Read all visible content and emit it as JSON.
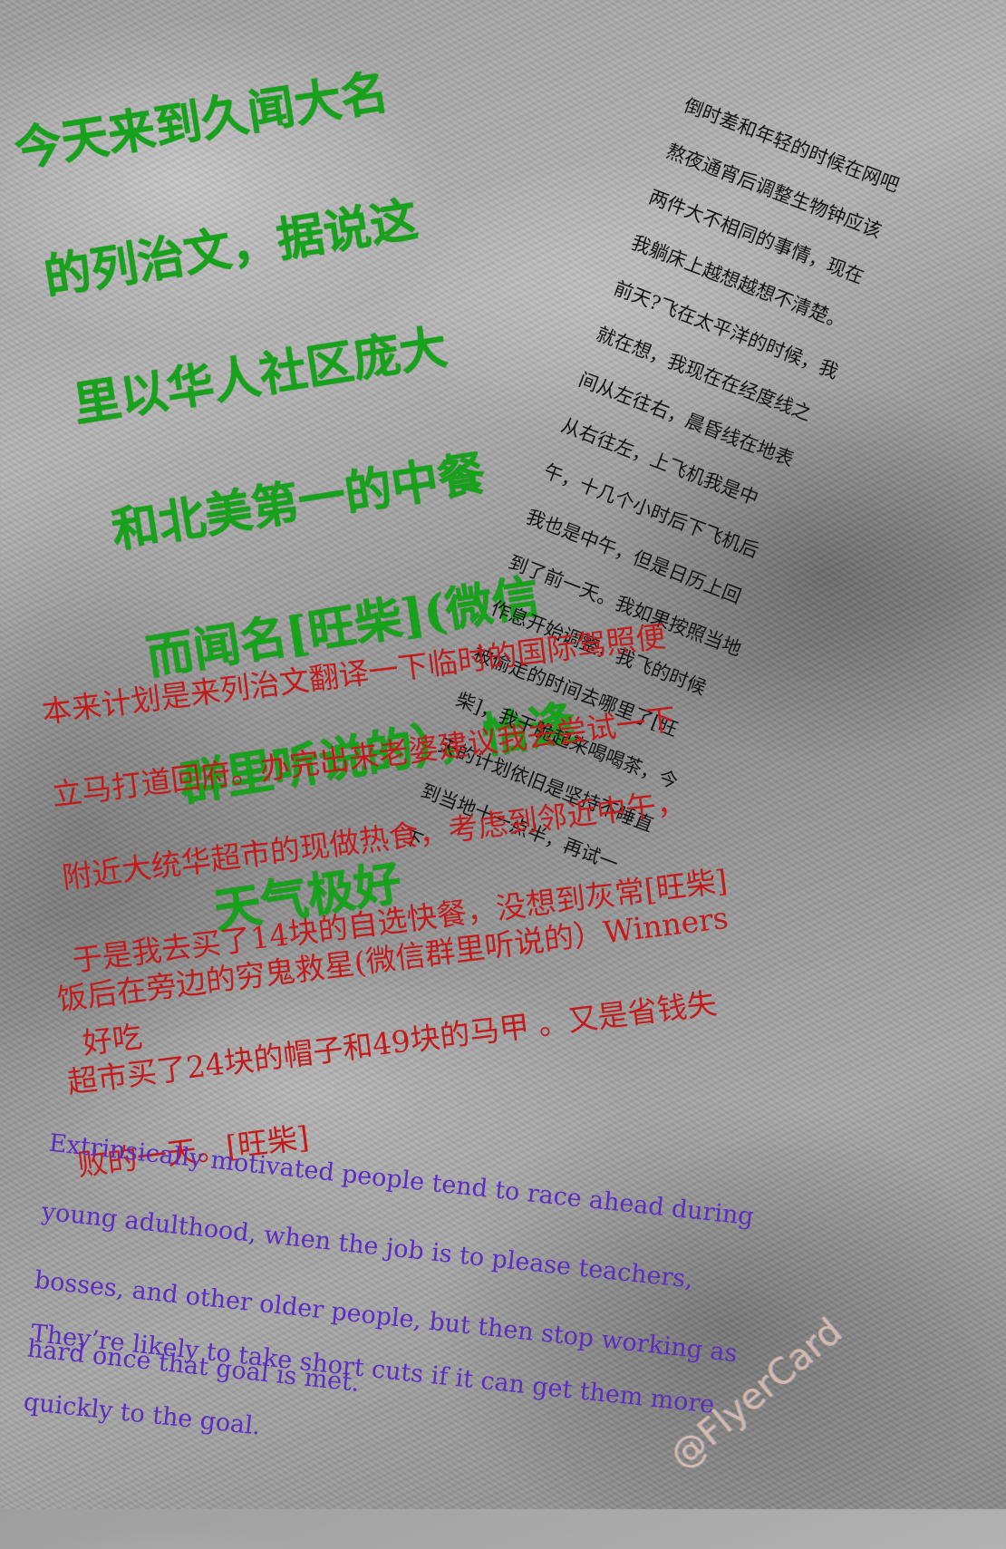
{
  "green_text": {
    "lines": [
      "今天来到久闻大名",
      "的列治文，据说这",
      "里以华人社区庞大",
      "和北美第一的中餐",
      "而闻名[旺柴](微信",
      "群里听说的），恰逢",
      "天气极好"
    ]
  },
  "black_text": {
    "lines": [
      "倒时差和年轻的时候在网吧",
      "熬夜通宵后调整生物钟应该",
      "两件大不相同的事情，现在",
      "我躺床上越想越想不清楚。",
      "前天?飞在太平洋的时候，我",
      "就在想，我现在在经度线之",
      "间从左往右，晨昏线在地表",
      "从右往左，上飞机我是中",
      "午，十几个小时后下飞机后",
      "我也是中午，但是日历上回",
      "到了前一天。我如果按照当地",
      "作息开始调整，我飞的时候",
      "被偷走的时间去哪里了[旺",
      "柴]，我干脆起来喝喝茶，今",
      "天的计划依旧是坚持不睡直",
      "到当地十一点半，再试一",
      "下"
    ]
  },
  "red_text_1": {
    "lines": [
      "本来计划是来列治文翻译一下临时的国际驾照便",
      "立马打道回府。办完出来老婆建议我去尝试一下",
      "附近大统华超市的现做热食，考虑到邻近中午，",
      "于是我去买了14块的自选快餐，没想到灰常[旺柴]",
      "好吃"
    ]
  },
  "red_text_2": {
    "lines": [
      "饭后在旁边的穷鬼救星(微信群里听说的）Winners",
      "超市买了24块的帽子和49块的马甲 。又是省钱失",
      "败的一天。[旺柴]"
    ]
  },
  "purple_text_1": {
    "lines": [
      "Extrinsically motivated people tend to race ahead during",
      "young adulthood, when the job is to please teachers,",
      "bosses, and other older people, but then stop working as",
      "hard once that goal is met."
    ]
  },
  "purple_text_2": {
    "lines": [
      "They’re likely to take short cuts if it can get them more",
      "quickly to the goal."
    ]
  },
  "watermark": {
    "text": "@FlyerCard"
  }
}
